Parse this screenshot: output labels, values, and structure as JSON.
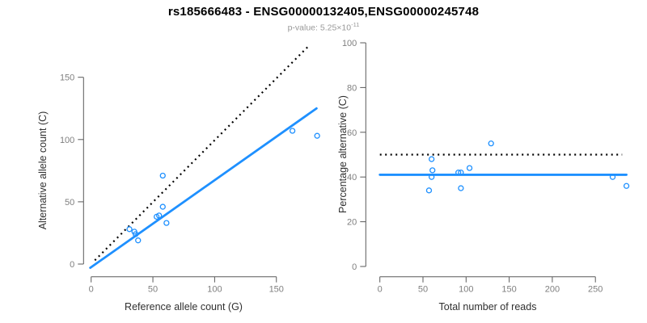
{
  "header": {
    "title": "rs185666483 - ENSG00000132405,ENSG00000245748",
    "subtitle_prefix": "p-value: 5.25×10",
    "subtitle_exponent": "-11"
  },
  "colors": {
    "point": "#1E90FF",
    "fit_line": "#1E90FF",
    "reference_line": "#000000",
    "axis": "#595959",
    "tick_label": "#7f7f7f",
    "axis_title": "#303030",
    "title": "#000000",
    "subtitle": "#999999",
    "background": "#ffffff"
  },
  "chart_data": [
    {
      "type": "scatter",
      "name": "allele-counts-panel",
      "xlabel": "Reference allele count (G)",
      "ylabel": "Alternative allele count (C)",
      "xticks": [
        0,
        50,
        100,
        150
      ],
      "yticks": [
        0,
        50,
        100,
        150
      ],
      "xlim": [
        0,
        183
      ],
      "ylim": [
        -4,
        181
      ],
      "grid": false,
      "legend": "none",
      "points": [
        [
          31,
          28
        ],
        [
          35,
          26
        ],
        [
          36,
          24
        ],
        [
          38,
          19
        ],
        [
          53,
          38
        ],
        [
          55,
          39
        ],
        [
          58,
          46
        ],
        [
          58,
          71
        ],
        [
          61,
          33
        ],
        [
          163,
          107
        ],
        [
          183,
          103
        ]
      ],
      "lines": [
        {
          "name": "identity-line",
          "style": "dotted",
          "color_key": "reference_line",
          "x1": 3,
          "y1": 3,
          "x2": 177,
          "y2": 176
        },
        {
          "name": "fit-line",
          "style": "solid",
          "color_key": "fit_line",
          "x1": -0.7,
          "y1": -3,
          "x2": 182.5,
          "y2": 125
        }
      ]
    },
    {
      "type": "scatter",
      "name": "percentage-panel",
      "xlabel": "Total number of reads",
      "ylabel": "Percentage alternative (C)",
      "xticks": [
        0,
        50,
        100,
        150,
        200,
        250
      ],
      "yticks": [
        0,
        20,
        40,
        60,
        80,
        100
      ],
      "xlim": [
        0,
        287
      ],
      "ylim": [
        0,
        100
      ],
      "grid": false,
      "legend": "none",
      "points": [
        [
          57,
          34
        ],
        [
          60,
          48
        ],
        [
          60,
          40
        ],
        [
          61,
          43
        ],
        [
          91,
          42
        ],
        [
          94,
          42
        ],
        [
          94,
          35
        ],
        [
          104,
          44
        ],
        [
          129,
          55
        ],
        [
          270,
          40
        ],
        [
          286,
          36
        ]
      ],
      "lines": [
        {
          "name": "fifty-percent-line",
          "style": "dotted",
          "color_key": "reference_line",
          "x1": 0,
          "y1": 50,
          "x2": 281,
          "y2": 50
        },
        {
          "name": "mean-percentage-line",
          "style": "solid",
          "color_key": "fit_line",
          "x1": 0,
          "y1": 41,
          "x2": 286,
          "y2": 41
        }
      ]
    }
  ]
}
